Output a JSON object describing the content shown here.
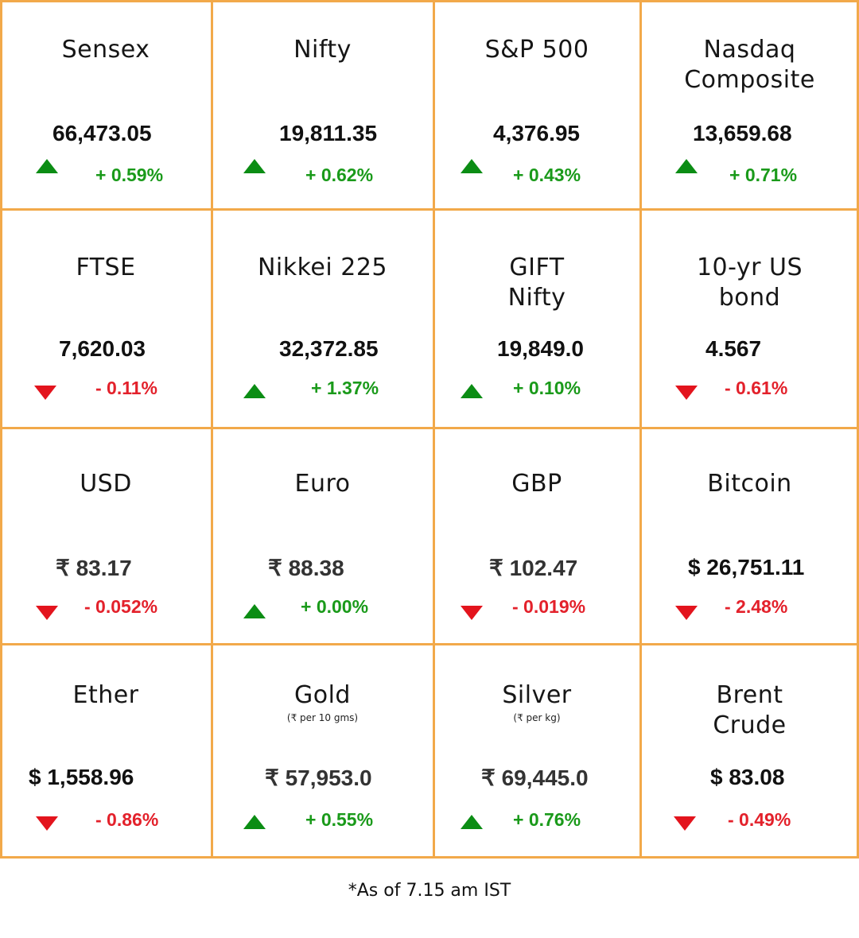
{
  "colors": {
    "border": "#f2a94a",
    "up": "#1a9a1a",
    "down": "#e3212b"
  },
  "tiles": [
    {
      "name": [
        "Sensex"
      ],
      "value": "66,473.05",
      "change": "+ 0.59%",
      "direction": "up"
    },
    {
      "name": [
        "Nifty"
      ],
      "value": "19,811.35",
      "change": "+ 0.62%",
      "direction": "up"
    },
    {
      "name": [
        "S&P 500"
      ],
      "value": "4,376.95",
      "change": "+ 0.43%",
      "direction": "up"
    },
    {
      "name": [
        "Nasdaq",
        "Composite"
      ],
      "value": "13,659.68",
      "change": "+ 0.71%",
      "direction": "up"
    },
    {
      "name": [
        "FTSE"
      ],
      "value": "7,620.03",
      "change": "- 0.11%",
      "direction": "down"
    },
    {
      "name": [
        "Nikkei 225"
      ],
      "value": "32,372.85",
      "change": "+ 1.37%",
      "direction": "up"
    },
    {
      "name": [
        "GIFT",
        "Nifty"
      ],
      "value": "19,849.0",
      "change": "+ 0.10%",
      "direction": "up"
    },
    {
      "name": [
        "10-yr US",
        "bond"
      ],
      "value": "4.567",
      "change": "- 0.61%",
      "direction": "down"
    },
    {
      "name": [
        "USD"
      ],
      "value": "₹ 83.17",
      "change": "- 0.052%",
      "direction": "down"
    },
    {
      "name": [
        "Euro"
      ],
      "value": "₹ 88.38",
      "change": "+ 0.00%",
      "direction": "up"
    },
    {
      "name": [
        "GBP"
      ],
      "value": "₹ 102.47",
      "change": "- 0.019%",
      "direction": "down"
    },
    {
      "name": [
        "Bitcoin"
      ],
      "value": "$ 26,751.11",
      "change": "- 2.48%",
      "direction": "down"
    },
    {
      "name": [
        "Ether"
      ],
      "value": "$ 1,558.96",
      "change": "- 0.86%",
      "direction": "down"
    },
    {
      "name": [
        "Gold"
      ],
      "unit": "(₹ per 10 gms)",
      "value": "₹ 57,953.0",
      "change": "+ 0.55%",
      "direction": "up"
    },
    {
      "name": [
        "Silver"
      ],
      "unit": "(₹ per kg)",
      "value": "₹ 69,445.0",
      "change": "+ 0.76%",
      "direction": "up"
    },
    {
      "name": [
        "Brent",
        "Crude"
      ],
      "value": "$ 83.08",
      "change": "- 0.49%",
      "direction": "down"
    }
  ],
  "footnote": "*As of 7.15 am IST"
}
